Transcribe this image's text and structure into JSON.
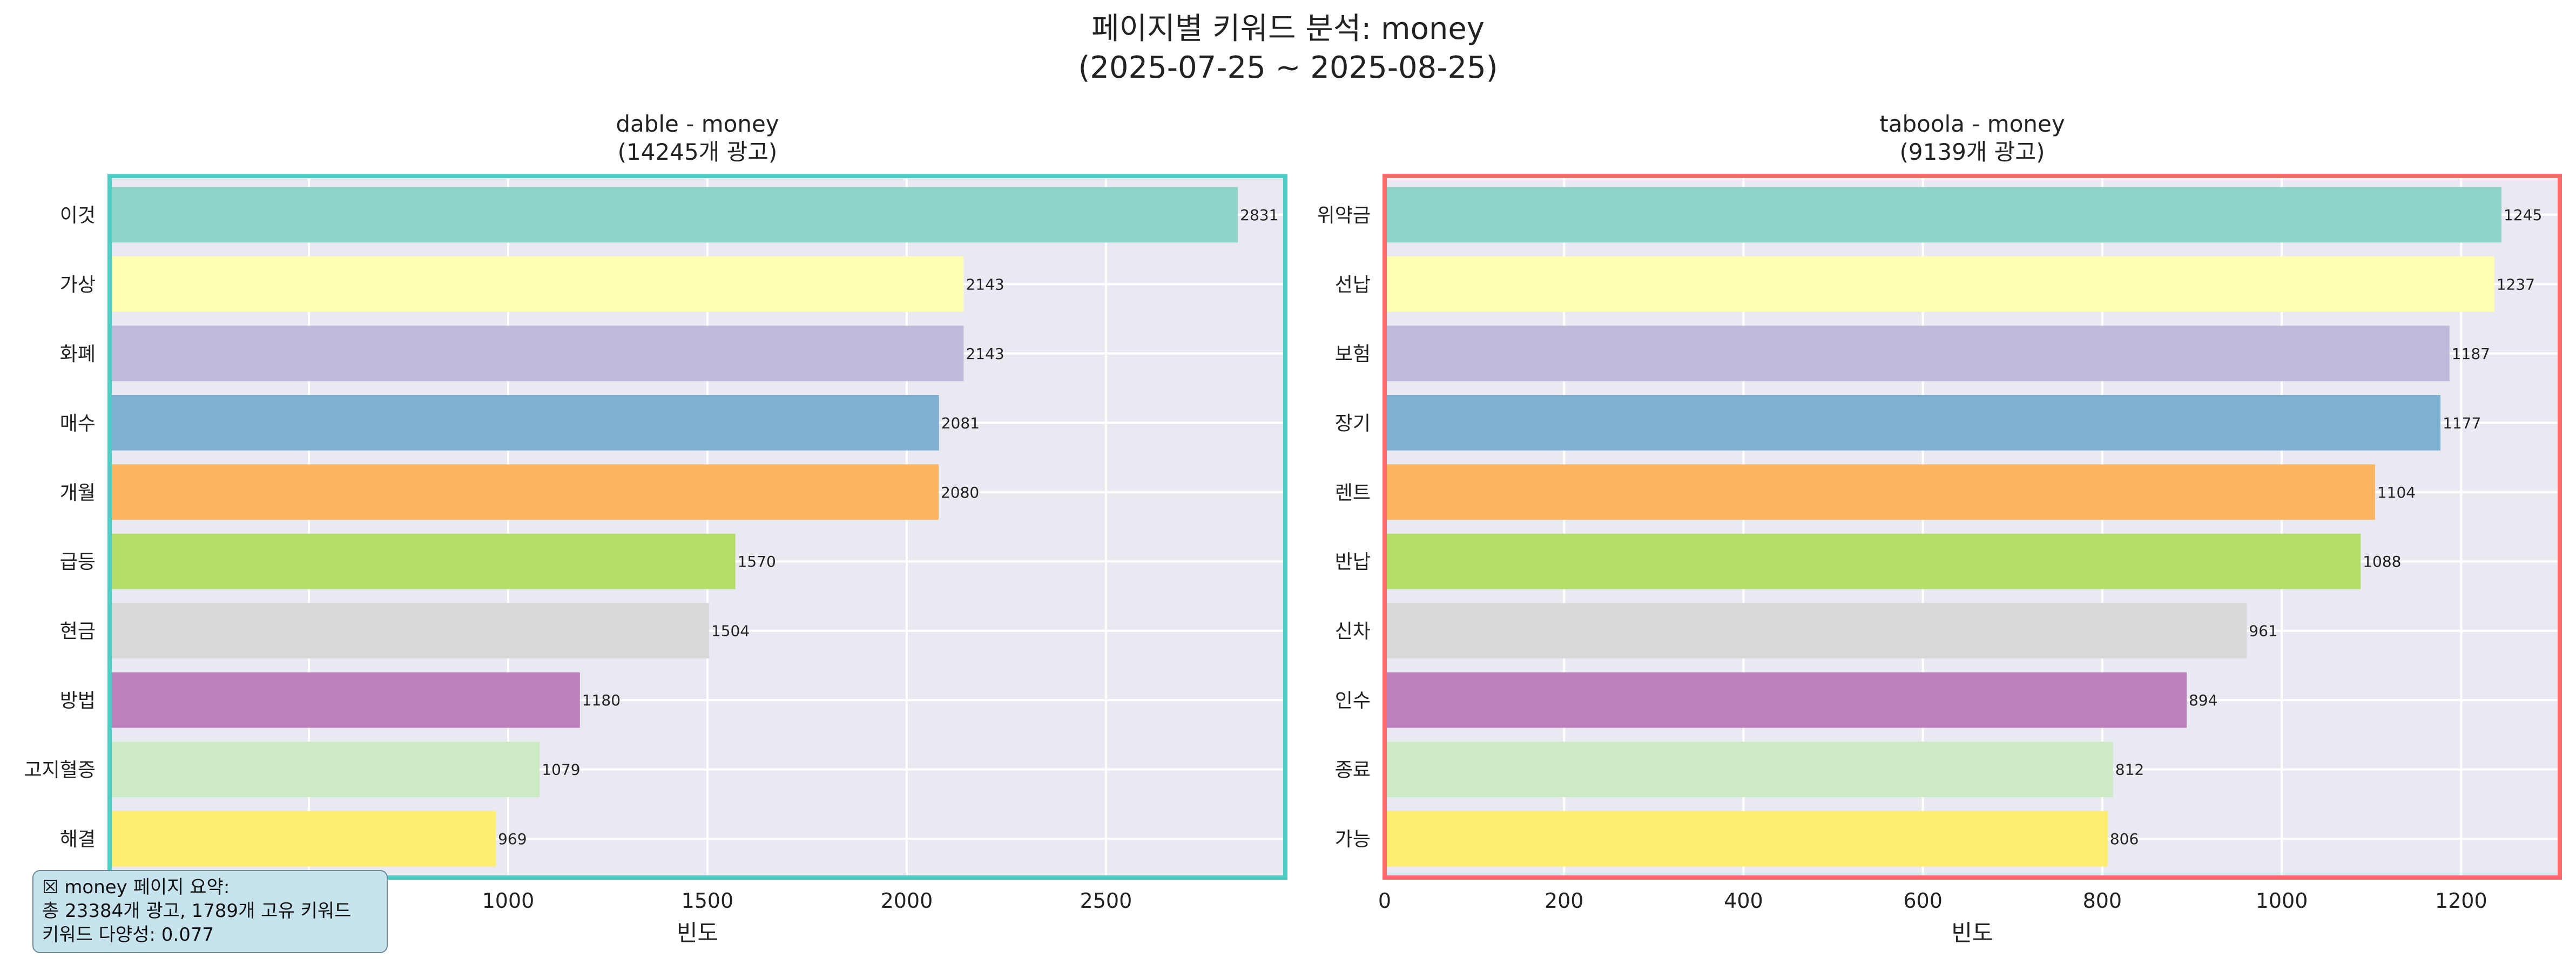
{
  "figure": {
    "title_line1": "페이지별 키워드 분석: money",
    "title_line2": "(2025-07-25 ~ 2025-08-25)"
  },
  "colors": {
    "panel_bg": "#e9e9f1",
    "grid": "#ffffff",
    "bars": [
      "#8dd3c7",
      "#ffffb3",
      "#bebada",
      "#80b1d3",
      "#fdb462",
      "#b3de69",
      "#d9d9d9",
      "#bc80bd",
      "#ccebc5",
      "#ffed6f"
    ]
  },
  "chart_data": [
    {
      "type": "bar",
      "orientation": "horizontal",
      "title_line1": "dable - money",
      "title_line2": "(14245개 광고)",
      "xlabel": "빈도",
      "ylabel": "",
      "xlim": [
        0,
        2950
      ],
      "xticks": [
        500,
        1000,
        1500,
        2000,
        2500
      ],
      "border_color": "#4ecdc4",
      "grid": true,
      "categories": [
        "이것",
        "가상",
        "화폐",
        "매수",
        "개월",
        "급등",
        "현금",
        "방법",
        "고지혈증",
        "해결"
      ],
      "values": [
        2831,
        2143,
        2143,
        2081,
        2080,
        1570,
        1504,
        1180,
        1079,
        969
      ]
    },
    {
      "type": "bar",
      "orientation": "horizontal",
      "title_line1": "taboola - money",
      "title_line2": "(9139개 광고)",
      "xlabel": "빈도",
      "ylabel": "",
      "xlim": [
        0,
        1310
      ],
      "xticks": [
        0,
        200,
        400,
        600,
        800,
        1000,
        1200
      ],
      "border_color": "#ff6b6b",
      "grid": true,
      "categories": [
        "위약금",
        "선납",
        "보험",
        "장기",
        "렌트",
        "반납",
        "신차",
        "인수",
        "종료",
        "가능"
      ],
      "values": [
        1245,
        1237,
        1187,
        1177,
        1104,
        1088,
        961,
        894,
        812,
        806
      ]
    }
  ],
  "summary": {
    "line1": "☒ money 페이지 요약:",
    "line2": "총 23384개 광고, 1789개 고유 키워드",
    "line3": "키워드 다양성: 0.077"
  }
}
